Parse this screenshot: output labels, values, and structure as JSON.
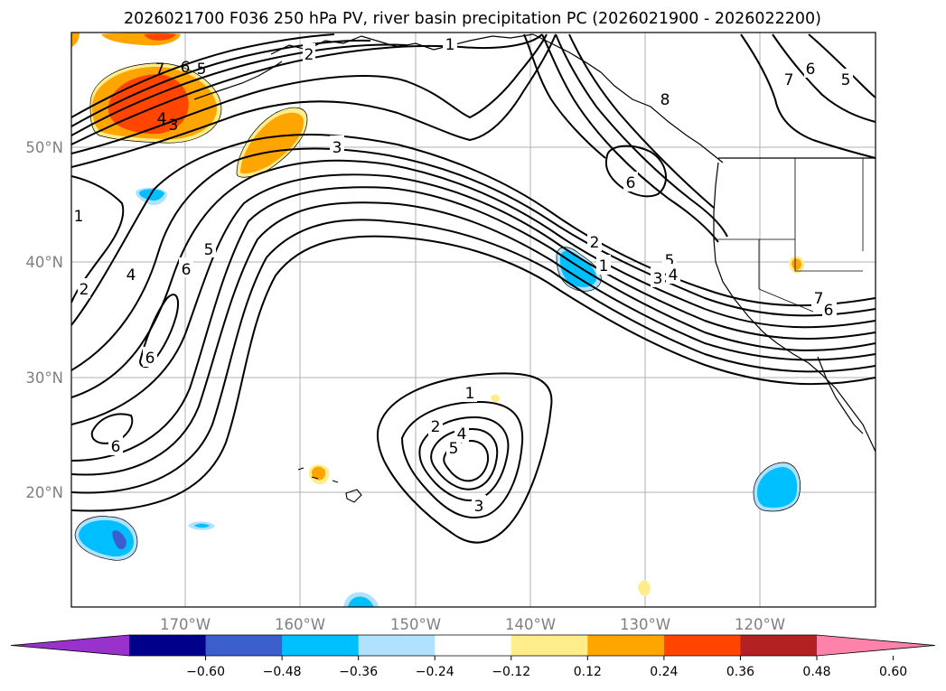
{
  "title": "2026021700 F036 250 hPa PV, river basin precipitation PC (2026021900 - 2026022200)",
  "lat_labels": [
    "50°N",
    "40°N",
    "30°N",
    "20°N"
  ],
  "lon_labels": [
    "170°W",
    "160°W",
    "150°W",
    "140°W",
    "130°W",
    "120°W"
  ],
  "colorbar": {
    "colors": [
      "#9932cc",
      "#00008b",
      "#3a5fcd",
      "#00bfff",
      "#b0e2ff",
      "#ffffff",
      "#ffec8b",
      "#ffa500",
      "#ff4500",
      "#b22222",
      "#ff82ab"
    ],
    "tick_labels": [
      "−0.60",
      "−0.48",
      "−0.36",
      "−0.24",
      "−0.12",
      "0.12",
      "0.24",
      "0.36",
      "0.48",
      "0.60"
    ]
  },
  "contour_labels": {
    "a1": "1",
    "b2": "2",
    "c1": "1",
    "d2": "2",
    "e3": "3",
    "f4": "4",
    "g5": "5",
    "h6": "6",
    "i7": "7",
    "j3": "3",
    "k4": "4",
    "l5": "5",
    "m6": "6",
    "n7": "7",
    "o6": "6",
    "p3": "3",
    "q6": "6",
    "r8": "8",
    "s7": "7",
    "t6": "6",
    "u5": "5",
    "v2": "2",
    "w1": "1",
    "x5": "5",
    "y3": "3",
    "z4": "4",
    "aa7": "7",
    "ab6": "6",
    "ac1": "1",
    "ad2": "2",
    "ae4": "4",
    "af5": "5",
    "ag3": "3",
    "ah6": "6",
    "ai6": "6"
  }
}
